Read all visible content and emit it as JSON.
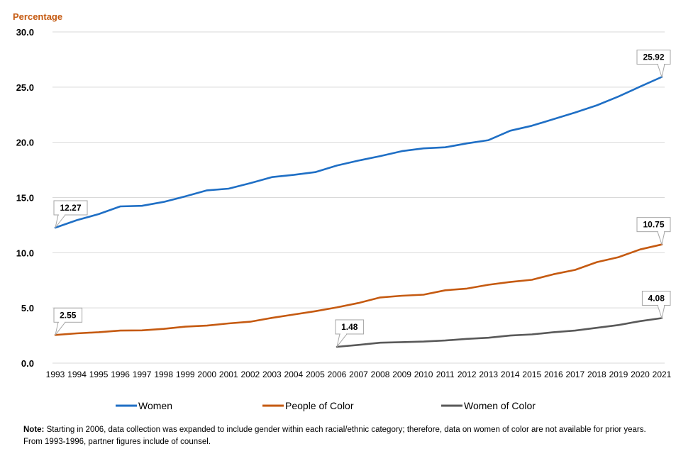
{
  "chart_data": {
    "type": "line",
    "ylabel": "Percentage",
    "ylabel_color": "#C55A11",
    "ylim": [
      0,
      30
    ],
    "yticks": [
      "0.0",
      "5.0",
      "10.0",
      "15.0",
      "20.0",
      "25.0",
      "30.0"
    ],
    "grid": true,
    "legend_position": "bottom",
    "x": [
      "1993",
      "1994",
      "1995",
      "1996",
      "1997",
      "1998",
      "1999",
      "2000",
      "2001",
      "2002",
      "2003",
      "2004",
      "2005",
      "2006",
      "2007",
      "2008",
      "2009",
      "2010",
      "2011",
      "2012",
      "2013",
      "2014",
      "2015",
      "2016",
      "2017",
      "2018",
      "2019",
      "2020",
      "2021"
    ],
    "series": [
      {
        "name": "Women",
        "color": "#1F6FC5",
        "values": [
          12.27,
          12.95,
          13.5,
          14.2,
          14.25,
          14.6,
          15.1,
          15.65,
          15.8,
          16.3,
          16.85,
          17.05,
          17.3,
          17.9,
          18.35,
          18.75,
          19.2,
          19.45,
          19.55,
          19.9,
          20.2,
          21.05,
          21.5,
          22.1,
          22.7,
          23.35,
          24.15,
          25.05,
          25.92
        ],
        "callouts": [
          {
            "index": 0,
            "label": "12.27"
          },
          {
            "index": 28,
            "label": "25.92"
          }
        ]
      },
      {
        "name": "People of Color",
        "color": "#C55A11",
        "values": [
          2.55,
          2.7,
          2.8,
          2.95,
          2.97,
          3.1,
          3.3,
          3.4,
          3.6,
          3.75,
          4.1,
          4.4,
          4.7,
          5.05,
          5.45,
          5.95,
          6.1,
          6.2,
          6.6,
          6.75,
          7.1,
          7.35,
          7.55,
          8.05,
          8.45,
          9.15,
          9.6,
          10.3,
          10.75
        ],
        "callouts": [
          {
            "index": 0,
            "label": "2.55"
          },
          {
            "index": 28,
            "label": "10.75"
          }
        ]
      },
      {
        "name": "Women of Color",
        "color": "#595959",
        "values": [
          null,
          null,
          null,
          null,
          null,
          null,
          null,
          null,
          null,
          null,
          null,
          null,
          null,
          1.48,
          1.65,
          1.85,
          1.9,
          1.95,
          2.05,
          2.2,
          2.3,
          2.5,
          2.6,
          2.8,
          2.95,
          3.2,
          3.45,
          3.8,
          4.08
        ],
        "callouts": [
          {
            "index": 13,
            "label": "1.48"
          },
          {
            "index": 28,
            "label": "4.08"
          }
        ]
      }
    ]
  },
  "note": {
    "label": "Note:",
    "text": " Starting in 2006, data collection was expanded to include gender within each racial/ethnic category; therefore, data on women of color are not available for prior years. From 1993-1996, partner figures include of counsel."
  }
}
